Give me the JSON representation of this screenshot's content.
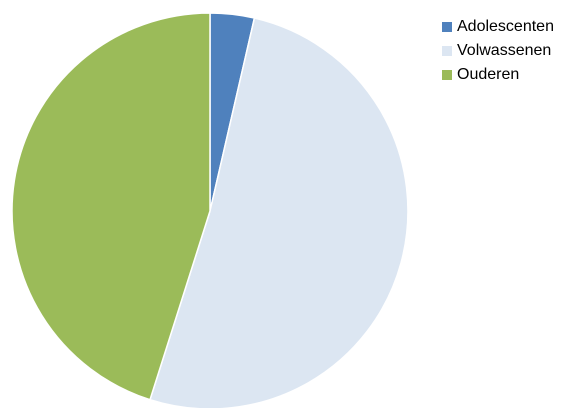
{
  "chart_data": {
    "type": "pie",
    "title": "",
    "start_angle_deg": 0,
    "direction": "clockwise",
    "slices": [
      {
        "label": "Adolescenten",
        "value": 3.6,
        "color": "#4F81BD"
      },
      {
        "label": "Volwassenen",
        "value": 51.3,
        "color": "#DCE6F2"
      },
      {
        "label": "Ouderen",
        "value": 45.1,
        "color": "#9BBB59"
      }
    ],
    "legend_position": "right"
  },
  "legend": {
    "items": [
      {
        "label": "Adolescenten",
        "color": "#4F81BD"
      },
      {
        "label": "Volwassenen",
        "color": "#DCE6F2"
      },
      {
        "label": "Ouderen",
        "color": "#9BBB59"
      }
    ]
  }
}
